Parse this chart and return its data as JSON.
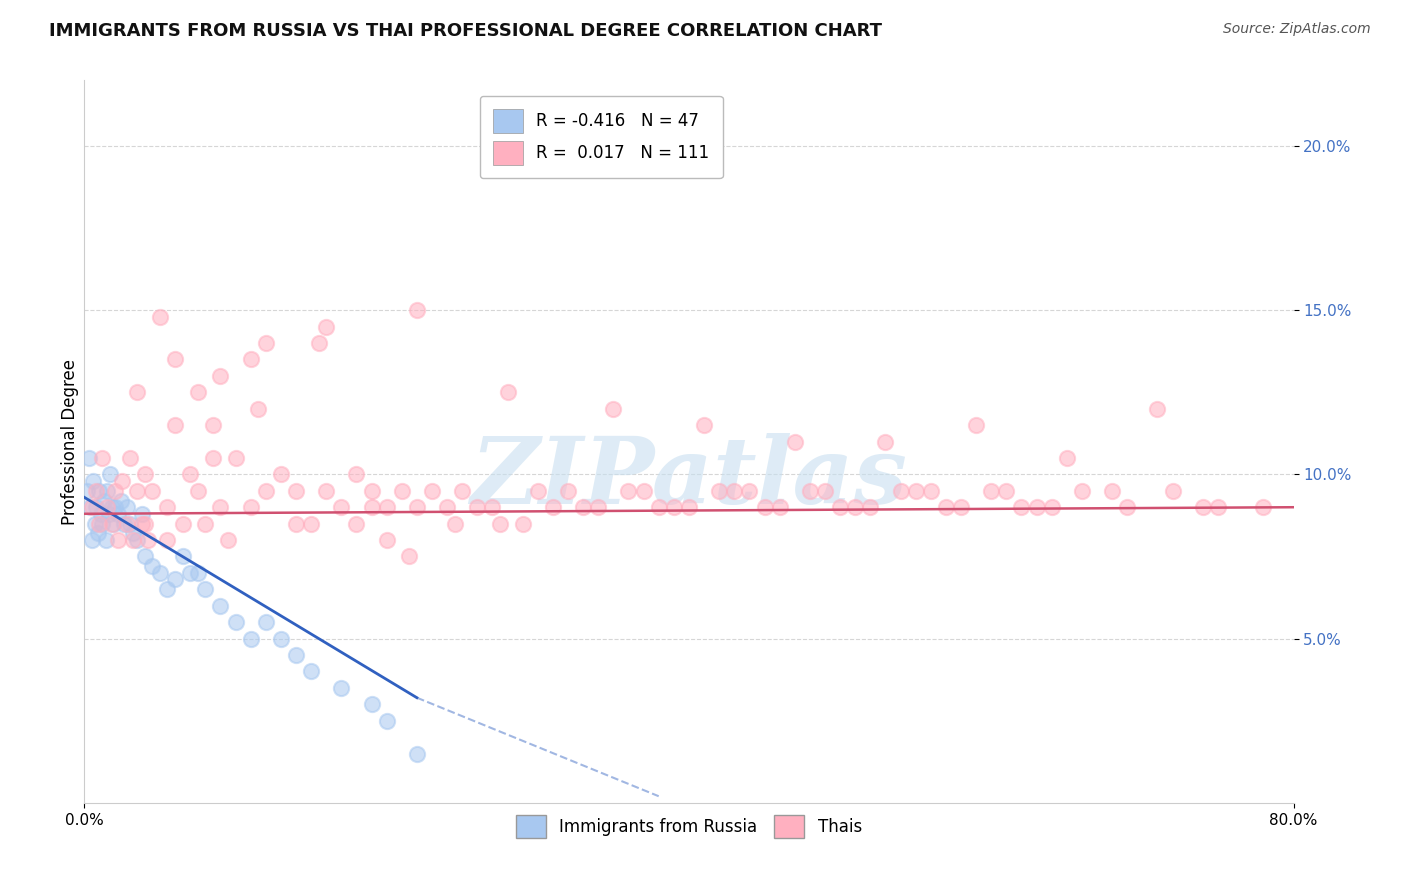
{
  "title": "IMMIGRANTS FROM RUSSIA VS THAI PROFESSIONAL DEGREE CORRELATION CHART",
  "source_text": "Source: ZipAtlas.com",
  "ylabel": "Professional Degree",
  "legend_entries": [
    {
      "label": "Immigrants from Russia",
      "R": "-0.416",
      "N": "47",
      "color": "#a8c8f0"
    },
    {
      "label": "Thais",
      "R": "0.017",
      "N": "111",
      "color": "#ffb0c0"
    }
  ],
  "xlim": [
    0.0,
    80.0
  ],
  "ylim": [
    0.0,
    22.0
  ],
  "x_ticks": [
    0.0,
    20.0,
    40.0,
    60.0,
    80.0
  ],
  "x_tick_labels": [
    "0.0%",
    "",
    "",
    "",
    "80.0%"
  ],
  "y_ticks": [
    5.0,
    10.0,
    15.0,
    20.0
  ],
  "y_tick_labels": [
    "5.0%",
    "10.0%",
    "15.0%",
    "20.0%"
  ],
  "watermark": "ZIPatlas",
  "background_color": "#ffffff",
  "blue_scatter_x": [
    0.2,
    0.3,
    0.4,
    0.5,
    0.6,
    0.7,
    0.8,
    0.9,
    1.0,
    1.1,
    1.2,
    1.3,
    1.4,
    1.5,
    1.6,
    1.7,
    1.8,
    1.9,
    2.0,
    2.2,
    2.4,
    2.6,
    2.8,
    3.0,
    3.5,
    4.0,
    4.5,
    5.0,
    5.5,
    6.0,
    7.0,
    8.0,
    9.0,
    10.0,
    11.0,
    12.0,
    13.0,
    14.0,
    15.0,
    17.0,
    19.0,
    20.0,
    22.0,
    3.2,
    3.8,
    6.5,
    7.5
  ],
  "blue_scatter_y": [
    9.5,
    10.5,
    9.0,
    8.0,
    9.8,
    8.5,
    9.0,
    8.2,
    9.5,
    8.8,
    8.5,
    9.2,
    8.0,
    9.5,
    8.8,
    10.0,
    9.0,
    8.5,
    9.0,
    8.8,
    9.2,
    8.5,
    9.0,
    8.5,
    8.0,
    7.5,
    7.2,
    7.0,
    6.5,
    6.8,
    7.0,
    6.5,
    6.0,
    5.5,
    5.0,
    5.5,
    5.0,
    4.5,
    4.0,
    3.5,
    3.0,
    2.5,
    1.5,
    8.2,
    8.8,
    7.5,
    7.0
  ],
  "pink_scatter_x": [
    0.5,
    0.8,
    1.0,
    1.2,
    1.5,
    1.8,
    2.0,
    2.2,
    2.5,
    2.8,
    3.0,
    3.2,
    3.5,
    3.8,
    4.0,
    4.2,
    4.5,
    5.0,
    5.5,
    6.0,
    6.5,
    7.0,
    7.5,
    8.0,
    8.5,
    9.0,
    9.5,
    10.0,
    11.0,
    12.0,
    13.0,
    14.0,
    15.0,
    16.0,
    17.0,
    18.0,
    19.0,
    20.0,
    21.0,
    22.0,
    23.0,
    24.0,
    25.0,
    27.0,
    30.0,
    33.0,
    36.0,
    39.0,
    42.0,
    45.0,
    48.0,
    51.0,
    54.0,
    57.0,
    60.0,
    63.0,
    66.0,
    69.0,
    72.0,
    75.0,
    78.0,
    6.0,
    9.0,
    12.0,
    16.0,
    22.0,
    28.0,
    35.0,
    41.0,
    47.0,
    53.0,
    59.0,
    65.0,
    71.0,
    7.5,
    11.0,
    18.0,
    26.0,
    32.0,
    38.0,
    44.0,
    50.0,
    56.0,
    62.0,
    68.0,
    74.0,
    5.5,
    14.0,
    20.0,
    29.0,
    4.0,
    3.5,
    8.5,
    11.5,
    15.5,
    19.0,
    21.5,
    24.5,
    27.5,
    31.0,
    34.0,
    37.0,
    40.0,
    43.0,
    46.0,
    49.0,
    52.0,
    55.0,
    58.0,
    61.0,
    64.0
  ],
  "pink_scatter_y": [
    9.0,
    9.5,
    8.5,
    10.5,
    9.0,
    8.5,
    9.5,
    8.0,
    9.8,
    8.5,
    10.5,
    8.0,
    9.5,
    8.5,
    10.0,
    8.0,
    9.5,
    14.8,
    9.0,
    11.5,
    8.5,
    10.0,
    9.5,
    8.5,
    11.5,
    9.0,
    8.0,
    10.5,
    9.0,
    9.5,
    10.0,
    9.5,
    8.5,
    9.5,
    9.0,
    10.0,
    9.5,
    9.0,
    9.5,
    9.0,
    9.5,
    9.0,
    9.5,
    9.0,
    9.5,
    9.0,
    9.5,
    9.0,
    9.5,
    9.0,
    9.5,
    9.0,
    9.5,
    9.0,
    9.5,
    9.0,
    9.5,
    9.0,
    9.5,
    9.0,
    9.0,
    13.5,
    13.0,
    14.0,
    14.5,
    15.0,
    12.5,
    12.0,
    11.5,
    11.0,
    11.0,
    11.5,
    10.5,
    12.0,
    12.5,
    13.5,
    8.5,
    9.0,
    9.5,
    9.0,
    9.5,
    9.0,
    9.5,
    9.0,
    9.5,
    9.0,
    8.0,
    8.5,
    8.0,
    8.5,
    8.5,
    12.5,
    10.5,
    12.0,
    14.0,
    9.0,
    7.5,
    8.5,
    8.5,
    9.0,
    9.0,
    9.5,
    9.0,
    9.5,
    9.0,
    9.5,
    9.0,
    9.5,
    9.0,
    9.5,
    9.0
  ],
  "blue_line_x_start": 0.0,
  "blue_line_x_end": 22.0,
  "blue_line_y_start": 9.3,
  "blue_line_y_end": 3.2,
  "blue_dash_x_start": 22.0,
  "blue_dash_x_end": 38.0,
  "blue_dash_y_start": 3.2,
  "blue_dash_y_end": 0.2,
  "pink_line_x_start": 0.0,
  "pink_line_x_end": 80.0,
  "pink_line_y_start": 8.8,
  "pink_line_y_end": 9.0,
  "blue_dot_color": "#a8c8f0",
  "pink_dot_color": "#ffb0c0",
  "blue_line_color": "#3060c0",
  "pink_line_color": "#d05070",
  "dot_size": 120,
  "dot_alpha": 0.55,
  "title_fontsize": 13,
  "tick_fontsize": 11,
  "tick_color": "#4472c4",
  "ylabel_fontsize": 12,
  "grid_color": "#cccccc",
  "watermark_color": "#c8dff0",
  "watermark_alpha": 0.6
}
